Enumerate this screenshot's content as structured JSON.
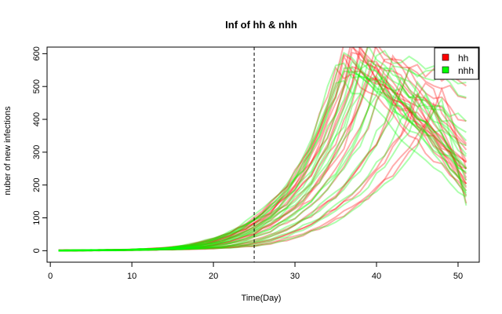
{
  "chart_data": {
    "type": "line",
    "title": "Inf of hh & nhh",
    "xlabel": "Time(Day)",
    "ylabel": "nuber of new infections",
    "xlim": [
      -0.4,
      52.6
    ],
    "ylim": [
      -35,
      620
    ],
    "xticks": [
      0,
      10,
      20,
      30,
      40,
      50
    ],
    "yticks": [
      0,
      100,
      200,
      300,
      400,
      500,
      600
    ],
    "grid": false,
    "legend": {
      "position": "top-right",
      "entries": [
        {
          "label": "hh",
          "color": "#ff0000"
        },
        {
          "label": "nhh",
          "color": "#00ff00"
        }
      ]
    },
    "vline": {
      "x": 25,
      "style": "dashed",
      "color": "#000000"
    },
    "series": [
      {
        "group": "hh",
        "color": "#ff0000",
        "onset": 18,
        "peak_x": 36,
        "peak_y": 630,
        "decay": 0.07,
        "end_y": 200
      },
      {
        "group": "hh",
        "color": "#ff0000",
        "onset": 19,
        "peak_x": 37,
        "peak_y": 615,
        "decay": 0.08,
        "end_y": 230
      },
      {
        "group": "hh",
        "color": "#ff0000",
        "onset": 20,
        "peak_x": 38,
        "peak_y": 600,
        "decay": 0.07,
        "end_y": 250
      },
      {
        "group": "hh",
        "color": "#ff0000",
        "onset": 17,
        "peak_x": 36,
        "peak_y": 590,
        "decay": 0.08,
        "end_y": 270
      },
      {
        "group": "hh",
        "color": "#ff0000",
        "onset": 21,
        "peak_x": 39,
        "peak_y": 620,
        "decay": 0.07,
        "end_y": 300
      },
      {
        "group": "hh",
        "color": "#ff0000",
        "onset": 22,
        "peak_x": 40,
        "peak_y": 580,
        "decay": 0.06,
        "end_y": 320
      },
      {
        "group": "hh",
        "color": "#ff0000",
        "onset": 18,
        "peak_x": 35,
        "peak_y": 560,
        "decay": 0.09,
        "end_y": 180
      },
      {
        "group": "hh",
        "color": "#ff0000",
        "onset": 23,
        "peak_x": 41,
        "peak_y": 600,
        "decay": 0.07,
        "end_y": 380
      },
      {
        "group": "hh",
        "color": "#ff0000",
        "onset": 20,
        "peak_x": 37,
        "peak_y": 570,
        "decay": 0.08,
        "end_y": 240
      },
      {
        "group": "hh",
        "color": "#ff0000",
        "onset": 24,
        "peak_x": 42,
        "peak_y": 590,
        "decay": 0.06,
        "end_y": 450
      },
      {
        "group": "hh",
        "color": "#ff0000",
        "onset": 21,
        "peak_x": 38,
        "peak_y": 610,
        "decay": 0.08,
        "end_y": 210
      },
      {
        "group": "hh",
        "color": "#ff0000",
        "onset": 19,
        "peak_x": 36,
        "peak_y": 575,
        "decay": 0.07,
        "end_y": 260
      },
      {
        "group": "hh",
        "color": "#ff0000",
        "onset": 26,
        "peak_x": 44,
        "peak_y": 560,
        "decay": 0.06,
        "end_y": 500
      },
      {
        "group": "hh",
        "color": "#ff0000",
        "onset": 28,
        "peak_x": 46,
        "peak_y": 520,
        "decay": 0.05,
        "end_y": 280
      },
      {
        "group": "hh",
        "color": "#ff0000",
        "onset": 30,
        "peak_x": 48,
        "peak_y": 480,
        "decay": 0.05,
        "end_y": 260
      },
      {
        "group": "hh",
        "color": "#ff0000",
        "onset": 22,
        "peak_x": 39,
        "peak_y": 540,
        "decay": 0.09,
        "end_y": 170
      },
      {
        "group": "hh",
        "color": "#ff0000",
        "onset": 25,
        "peak_x": 43,
        "peak_y": 500,
        "decay": 0.07,
        "end_y": 230
      },
      {
        "group": "hh",
        "color": "#ff0000",
        "onset": 20,
        "peak_x": 37,
        "peak_y": 630,
        "decay": 0.08,
        "end_y": 190
      },
      {
        "group": "hh",
        "color": "#ff0000",
        "onset": 27,
        "peak_x": 45,
        "peak_y": 470,
        "decay": 0.06,
        "end_y": 200
      },
      {
        "group": "hh",
        "color": "#ff0000",
        "onset": 23,
        "peak_x": 40,
        "peak_y": 620,
        "decay": 0.07,
        "end_y": 340
      },
      {
        "group": "hh",
        "color": "#ff0000",
        "onset": 18,
        "peak_x": 37,
        "peak_y": 600,
        "decay": 0.08,
        "end_y": 220
      },
      {
        "group": "hh",
        "color": "#ff0000",
        "onset": 29,
        "peak_x": 47,
        "peak_y": 450,
        "decay": 0.05,
        "end_y": 150
      },
      {
        "group": "nhh",
        "color": "#00ff00",
        "onset": 17,
        "peak_x": 35,
        "peak_y": 580,
        "decay": 0.08,
        "end_y": 240
      },
      {
        "group": "nhh",
        "color": "#00ff00",
        "onset": 18,
        "peak_x": 36,
        "peak_y": 560,
        "decay": 0.07,
        "end_y": 300
      },
      {
        "group": "nhh",
        "color": "#00ff00",
        "onset": 19,
        "peak_x": 37,
        "peak_y": 590,
        "decay": 0.08,
        "end_y": 260
      },
      {
        "group": "nhh",
        "color": "#00ff00",
        "onset": 20,
        "peak_x": 38,
        "peak_y": 540,
        "decay": 0.06,
        "end_y": 400
      },
      {
        "group": "nhh",
        "color": "#00ff00",
        "onset": 21,
        "peak_x": 39,
        "peak_y": 570,
        "decay": 0.07,
        "end_y": 350
      },
      {
        "group": "nhh",
        "color": "#00ff00",
        "onset": 22,
        "peak_x": 40,
        "peak_y": 600,
        "decay": 0.06,
        "end_y": 520
      },
      {
        "group": "nhh",
        "color": "#00ff00",
        "onset": 18,
        "peak_x": 35,
        "peak_y": 520,
        "decay": 0.09,
        "end_y": 160
      },
      {
        "group": "nhh",
        "color": "#00ff00",
        "onset": 23,
        "peak_x": 41,
        "peak_y": 560,
        "decay": 0.07,
        "end_y": 280
      },
      {
        "group": "nhh",
        "color": "#00ff00",
        "onset": 24,
        "peak_x": 42,
        "peak_y": 580,
        "decay": 0.06,
        "end_y": 480
      },
      {
        "group": "nhh",
        "color": "#00ff00",
        "onset": 19,
        "peak_x": 36,
        "peak_y": 610,
        "decay": 0.08,
        "end_y": 200
      },
      {
        "group": "nhh",
        "color": "#00ff00",
        "onset": 25,
        "peak_x": 43,
        "peak_y": 530,
        "decay": 0.07,
        "end_y": 220
      },
      {
        "group": "nhh",
        "color": "#00ff00",
        "onset": 27,
        "peak_x": 45,
        "peak_y": 500,
        "decay": 0.05,
        "end_y": 330
      },
      {
        "group": "nhh",
        "color": "#00ff00",
        "onset": 20,
        "peak_x": 38,
        "peak_y": 590,
        "decay": 0.08,
        "end_y": 250
      },
      {
        "group": "nhh",
        "color": "#00ff00",
        "onset": 21,
        "peak_x": 37,
        "peak_y": 550,
        "decay": 0.09,
        "end_y": 180
      },
      {
        "group": "nhh",
        "color": "#00ff00",
        "onset": 28,
        "peak_x": 46,
        "peak_y": 480,
        "decay": 0.06,
        "end_y": 170
      },
      {
        "group": "nhh",
        "color": "#00ff00",
        "onset": 22,
        "peak_x": 39,
        "peak_y": 620,
        "decay": 0.07,
        "end_y": 310
      },
      {
        "group": "nhh",
        "color": "#00ff00",
        "onset": 26,
        "peak_x": 44,
        "peak_y": 540,
        "decay": 0.06,
        "end_y": 560
      },
      {
        "group": "nhh",
        "color": "#00ff00",
        "onset": 17,
        "peak_x": 36,
        "peak_y": 570,
        "decay": 0.08,
        "end_y": 230
      },
      {
        "group": "nhh",
        "color": "#00ff00",
        "onset": 23,
        "peak_x": 40,
        "peak_y": 500,
        "decay": 0.08,
        "end_y": 190
      },
      {
        "group": "nhh",
        "color": "#00ff00",
        "onset": 30,
        "peak_x": 48,
        "peak_y": 460,
        "decay": 0.05,
        "end_y": 140
      }
    ]
  }
}
